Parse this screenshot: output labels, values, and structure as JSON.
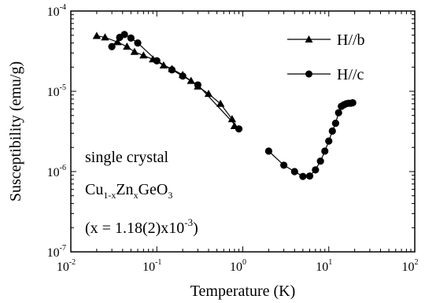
{
  "chart_data": {
    "type": "scatter",
    "xlabel": "Temperature (K)",
    "ylabel": "Susceptibility (emu/g)",
    "x_scale": "log",
    "y_scale": "log",
    "xlim": [
      0.01,
      100
    ],
    "ylim": [
      1e-07,
      0.0001
    ],
    "x_ticks": [
      {
        "value": 0.01,
        "base": "10",
        "exp": "-2"
      },
      {
        "value": 0.1,
        "base": "10",
        "exp": "-1"
      },
      {
        "value": 1,
        "base": "10",
        "exp": "0"
      },
      {
        "value": 10,
        "base": "10",
        "exp": "1"
      },
      {
        "value": 100,
        "base": "10",
        "exp": "2"
      }
    ],
    "y_ticks": [
      {
        "value": 1e-07,
        "base": "10",
        "exp": "-7"
      },
      {
        "value": 1e-06,
        "base": "10",
        "exp": "-6"
      },
      {
        "value": 1e-05,
        "base": "10",
        "exp": "-5"
      },
      {
        "value": 0.0001,
        "base": "10",
        "exp": "-4"
      }
    ],
    "grid": false,
    "legend_position": "top-right",
    "series": [
      {
        "name": "H//b",
        "marker": "triangle",
        "points": [
          [
            0.02,
            4.9e-05
          ],
          [
            0.025,
            4.7e-05
          ],
          [
            0.035,
            4.1e-05
          ],
          [
            0.045,
            3.6e-05
          ],
          [
            0.055,
            3.1e-05
          ],
          [
            0.07,
            2.8e-05
          ],
          [
            0.09,
            2.5e-05
          ],
          [
            0.12,
            2.1e-05
          ],
          [
            0.15,
            1.9e-05
          ],
          [
            0.2,
            1.6e-05
          ],
          [
            0.25,
            1.35e-05
          ],
          [
            0.3,
            1.15e-05
          ],
          [
            0.4,
            9.3e-06
          ],
          [
            0.55,
            7e-06
          ],
          [
            0.75,
            4.5e-06
          ],
          [
            0.8,
            3.7e-06
          ]
        ]
      },
      {
        "name": "H//c",
        "marker": "circle",
        "points": [
          [
            0.03,
            3.6e-05
          ],
          [
            0.037,
            4.7e-05
          ],
          [
            0.042,
            5.1e-05
          ],
          [
            0.05,
            4.6e-05
          ],
          [
            0.06,
            4e-05
          ],
          [
            0.1,
            2.4e-05
          ],
          [
            0.15,
            1.85e-05
          ],
          [
            0.2,
            1.55e-05
          ],
          [
            0.3,
            1.2e-05
          ],
          [
            0.9,
            3.4e-06
          ],
          [
            2,
            1.8e-06
          ],
          [
            3,
            1.2e-06
          ],
          [
            4,
            1e-06
          ],
          [
            5,
            8.7e-07
          ],
          [
            6,
            8.8e-07
          ],
          [
            7,
            1.05e-06
          ],
          [
            8,
            1.35e-06
          ],
          [
            9,
            1.8e-06
          ],
          [
            10,
            2.4e-06
          ],
          [
            11,
            3.2e-06
          ],
          [
            12,
            4e-06
          ],
          [
            13,
            5.4e-06
          ],
          [
            14,
            6.5e-06
          ],
          [
            15,
            6.8e-06
          ],
          [
            16,
            7e-06
          ],
          [
            17,
            7.1e-06
          ],
          [
            18,
            7.1e-06
          ],
          [
            19,
            7.2e-06
          ]
        ]
      }
    ],
    "annotations": {
      "line1": "single crystal",
      "cu": "Cu",
      "cu_sub": "1-x",
      "zn": "Zn",
      "zn_sub": "x",
      "geo": "GeO",
      "geo_sub": "3",
      "param_prefix": "(x = 1.18(2)x10",
      "param_exp": "-3",
      "param_suffix": ")"
    }
  }
}
